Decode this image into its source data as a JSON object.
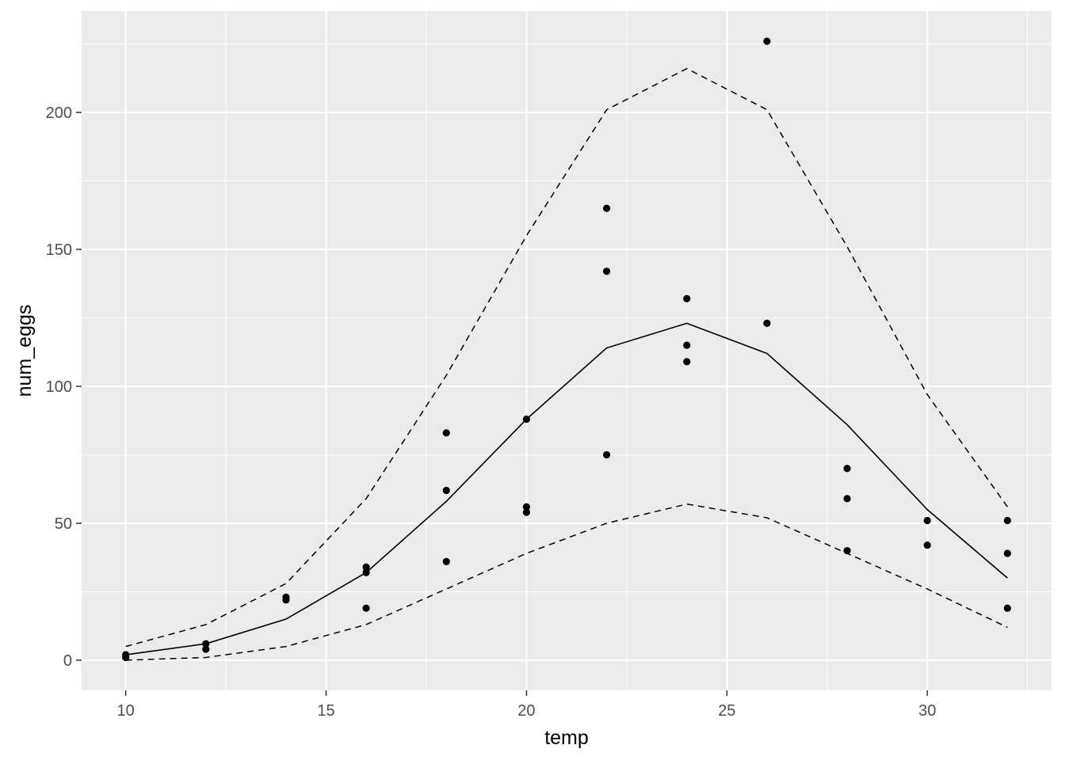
{
  "chart_data": {
    "type": "scatter",
    "xlabel": "temp",
    "ylabel": "num_eggs",
    "xlim": [
      8.9,
      33.1
    ],
    "ylim": [
      -11,
      237
    ],
    "x_ticks": [
      10,
      15,
      20,
      25,
      30
    ],
    "y_ticks": [
      0,
      50,
      100,
      150,
      200
    ],
    "grid": true,
    "colors": {
      "panel": "#ebebeb",
      "grid": "#ffffff",
      "marks": "#000000",
      "tick_text": "#4d4d4d"
    },
    "points": [
      {
        "x": 10,
        "y": 2
      },
      {
        "x": 10,
        "y": 1
      },
      {
        "x": 12,
        "y": 6
      },
      {
        "x": 12,
        "y": 4
      },
      {
        "x": 14,
        "y": 23
      },
      {
        "x": 14,
        "y": 22
      },
      {
        "x": 16,
        "y": 34
      },
      {
        "x": 16,
        "y": 32
      },
      {
        "x": 16,
        "y": 19
      },
      {
        "x": 18,
        "y": 83
      },
      {
        "x": 18,
        "y": 62
      },
      {
        "x": 18,
        "y": 36
      },
      {
        "x": 20,
        "y": 88
      },
      {
        "x": 20,
        "y": 56
      },
      {
        "x": 20,
        "y": 54
      },
      {
        "x": 22,
        "y": 165
      },
      {
        "x": 22,
        "y": 142
      },
      {
        "x": 22,
        "y": 75
      },
      {
        "x": 24,
        "y": 132
      },
      {
        "x": 24,
        "y": 115
      },
      {
        "x": 24,
        "y": 109
      },
      {
        "x": 26,
        "y": 226
      },
      {
        "x": 26,
        "y": 123
      },
      {
        "x": 28,
        "y": 70
      },
      {
        "x": 28,
        "y": 59
      },
      {
        "x": 28,
        "y": 40
      },
      {
        "x": 30,
        "y": 51
      },
      {
        "x": 30,
        "y": 42
      },
      {
        "x": 32,
        "y": 51
      },
      {
        "x": 32,
        "y": 39
      },
      {
        "x": 32,
        "y": 19
      }
    ],
    "fit_line": {
      "x": [
        10,
        12,
        14,
        16,
        18,
        20,
        22,
        24,
        26,
        28,
        30,
        32
      ],
      "y": [
        2,
        6,
        15,
        32,
        58,
        88,
        114,
        123,
        112,
        86,
        55,
        30
      ]
    },
    "upper_band": {
      "x": [
        10,
        12,
        14,
        16,
        18,
        20,
        22,
        24,
        26,
        28,
        30,
        32
      ],
      "y": [
        5,
        13,
        28,
        59,
        104,
        155,
        201,
        216,
        201,
        151,
        97,
        56
      ]
    },
    "lower_band": {
      "x": [
        10,
        12,
        14,
        16,
        18,
        20,
        22,
        24,
        26,
        28,
        30,
        32
      ],
      "y": [
        0,
        1,
        5,
        13,
        26,
        39,
        50,
        57,
        52,
        39,
        26,
        12
      ]
    }
  }
}
